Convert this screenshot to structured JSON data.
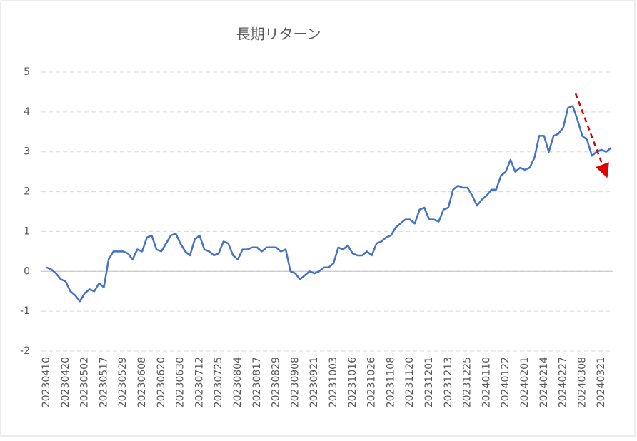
{
  "chart_data": {
    "type": "line",
    "title": "長期リターン",
    "categories": [
      "20230410",
      null,
      null,
      null,
      "20230420",
      null,
      null,
      null,
      "20230502",
      null,
      null,
      null,
      "20230517",
      null,
      null,
      null,
      "20230529",
      null,
      null,
      null,
      "20230608",
      null,
      null,
      null,
      "20230620",
      null,
      null,
      null,
      "20230630",
      null,
      null,
      null,
      "20230712",
      null,
      null,
      null,
      "20230725",
      null,
      null,
      null,
      "20230804",
      null,
      null,
      null,
      "20230817",
      null,
      null,
      null,
      "20230829",
      null,
      null,
      null,
      "20230908",
      null,
      null,
      null,
      "20230921",
      null,
      null,
      null,
      "20231003",
      null,
      null,
      null,
      "20231016",
      null,
      null,
      null,
      "20231026",
      null,
      null,
      null,
      "20231108",
      null,
      null,
      null,
      "20231120",
      null,
      null,
      null,
      "20231201",
      null,
      null,
      null,
      "20231213",
      null,
      null,
      null,
      "20231225",
      null,
      null,
      null,
      "20240110",
      null,
      null,
      null,
      "20240122",
      null,
      null,
      null,
      "20240201",
      null,
      null,
      null,
      "20240214",
      null,
      null,
      null,
      "20240227",
      null,
      null,
      null,
      "20240308",
      null,
      null,
      null,
      "20240321",
      null,
      null
    ],
    "series": [
      {
        "color": "#4472c4",
        "values": [
          0.1,
          0.05,
          -0.05,
          -0.2,
          -0.25,
          -0.5,
          -0.6,
          -0.75,
          -0.55,
          -0.45,
          -0.5,
          -0.3,
          -0.4,
          0.3,
          0.5,
          0.5,
          0.5,
          0.45,
          0.3,
          0.55,
          0.5,
          0.85,
          0.9,
          0.55,
          0.5,
          0.7,
          0.9,
          0.95,
          0.7,
          0.5,
          0.4,
          0.8,
          0.9,
          0.55,
          0.5,
          0.4,
          0.45,
          0.75,
          0.7,
          0.4,
          0.3,
          0.55,
          0.55,
          0.6,
          0.6,
          0.5,
          0.6,
          0.6,
          0.6,
          0.5,
          0.55,
          0.0,
          -0.05,
          -0.2,
          -0.1,
          0.0,
          -0.05,
          0.0,
          0.1,
          0.1,
          0.2,
          0.6,
          0.55,
          0.65,
          0.45,
          0.4,
          0.4,
          0.5,
          0.4,
          0.7,
          0.75,
          0.85,
          0.9,
          1.1,
          1.2,
          1.3,
          1.3,
          1.2,
          1.55,
          1.6,
          1.3,
          1.3,
          1.25,
          1.55,
          1.6,
          2.05,
          2.15,
          2.1,
          2.1,
          1.9,
          1.65,
          1.8,
          1.9,
          2.05,
          2.05,
          2.4,
          2.5,
          2.8,
          2.5,
          2.6,
          2.55,
          2.6,
          2.85,
          3.4,
          3.4,
          3.0,
          3.4,
          3.45,
          3.6,
          4.1,
          4.15,
          3.8,
          3.4,
          3.3,
          2.9,
          3.0,
          3.05,
          3.0,
          3.1
        ]
      }
    ],
    "ylim": [
      -2,
      5
    ],
    "yticks": [
      -2,
      -1,
      0,
      1,
      2,
      3,
      4,
      5
    ],
    "grid": true
  }
}
